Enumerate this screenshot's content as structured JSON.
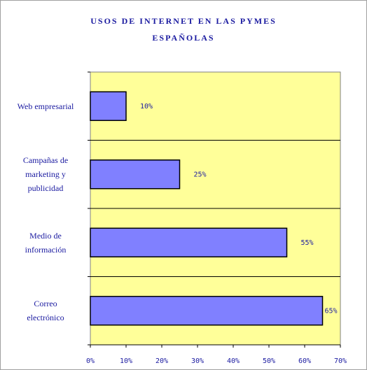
{
  "chart_data": {
    "type": "bar",
    "orientation": "horizontal",
    "title_line1": "USOS DE INTERNET EN LAS PYMES",
    "title_line2": "ESPAÑOLAS",
    "categories": [
      "Web empresarial",
      "Campañas de marketing y publicidad",
      "Medio de información",
      "Correo electrónico"
    ],
    "category_lines": [
      [
        "Web empresarial"
      ],
      [
        "Campañas de",
        "marketing y",
        "publicidad"
      ],
      [
        "Medio de",
        "información"
      ],
      [
        "Correo",
        "electrónico"
      ]
    ],
    "values": [
      10,
      25,
      55,
      65
    ],
    "value_labels": [
      "10%",
      "25%",
      "55%",
      "65%"
    ],
    "xlim": [
      0,
      70
    ],
    "x_ticks": [
      0,
      10,
      20,
      30,
      40,
      50,
      60,
      70
    ],
    "x_tick_labels": [
      "0%",
      "10%",
      "20%",
      "30%",
      "40%",
      "50%",
      "60%",
      "70%"
    ],
    "grid": "horizontal separators",
    "colors": {
      "plot_background": "#ffff99",
      "bar_fill": "#8080ff",
      "bar_stroke": "#000000",
      "text": "#1a1aa0"
    }
  }
}
